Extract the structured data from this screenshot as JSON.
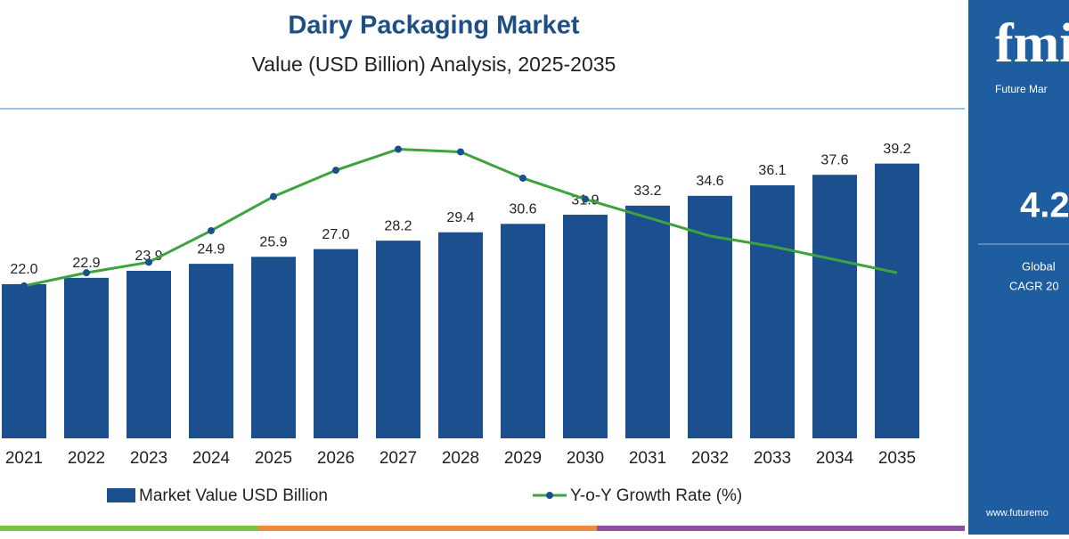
{
  "chart_data": {
    "type": "bar-line",
    "title": "Dairy Packaging Market",
    "subtitle": "Value (USD Billion) Analysis, 2025-2035",
    "categories": [
      "2021",
      "2022",
      "2023",
      "2024",
      "2025",
      "2026",
      "2027",
      "2028",
      "2029",
      "2030",
      "2031",
      "2032",
      "2033",
      "2034",
      "2035"
    ],
    "ylim": [
      0,
      45
    ],
    "y2lim": [
      3.8,
      5.0
    ],
    "series": [
      {
        "name": "Market Value USD Billion",
        "color": "#1b4f8e",
        "type": "bar",
        "values": [
          22.0,
          22.9,
          23.9,
          24.9,
          25.9,
          27.0,
          28.2,
          29.4,
          30.6,
          31.9,
          33.2,
          34.6,
          36.1,
          37.6,
          39.2
        ],
        "value_labels": [
          "22.0",
          "22.9",
          "23.9",
          "24.9",
          "25.9",
          "27.0",
          "28.2",
          "29.4",
          "30.6",
          "31.9",
          "33.2",
          "34.6",
          "36.1",
          "37.6",
          "39.2"
        ]
      },
      {
        "name": "Y-o-Y Growth Rate (%)",
        "color": "#3ea33e",
        "type": "line",
        "axis": "y2",
        "values": [
          4.38,
          4.43,
          4.47,
          4.59,
          4.72,
          4.82,
          4.9,
          4.89,
          4.79,
          4.71,
          4.64,
          4.57,
          4.53,
          4.48,
          4.43
        ]
      }
    ]
  },
  "sidebar": {
    "logo": "fmi",
    "brand": "Future Mar",
    "value": "4.2",
    "label1": "Global",
    "label2": "CAGR 20",
    "url": "www.futuremo"
  }
}
